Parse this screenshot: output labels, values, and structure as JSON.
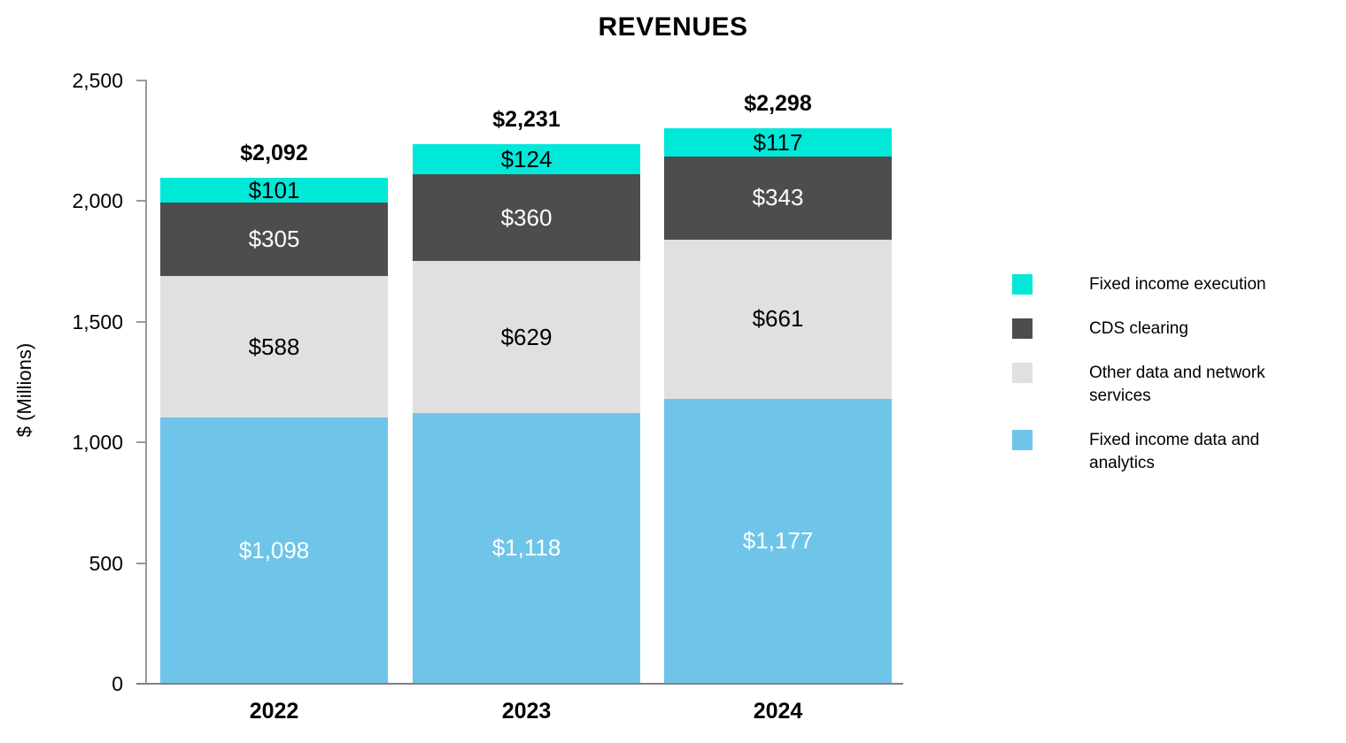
{
  "title": "REVENUES",
  "y_axis": {
    "label": "$ (Millions)",
    "ticks": [
      "0",
      "500",
      "1,000",
      "1,500",
      "2,000",
      "2,500"
    ]
  },
  "x_axis": {
    "categories": [
      "2022",
      "2023",
      "2024"
    ]
  },
  "chart_data": {
    "type": "bar",
    "stacked": true,
    "title": "REVENUES",
    "xlabel": "",
    "ylabel": "$ (Millions)",
    "ylim": [
      0,
      2500
    ],
    "grid": false,
    "legend_position": "right",
    "categories": [
      "2022",
      "2023",
      "2024"
    ],
    "series": [
      {
        "name": "Fixed income data and analytics",
        "color": "#6EC5E9",
        "text_color": "#FFFFFF",
        "values": [
          1098,
          1118,
          1177
        ],
        "value_labels": [
          "$1,098",
          "$1,118",
          "$1,177"
        ]
      },
      {
        "name": "Other data and network services",
        "color": "#E0E0E0",
        "text_color": "#000000",
        "values": [
          588,
          629,
          661
        ],
        "value_labels": [
          "$588",
          "$629",
          "$661"
        ]
      },
      {
        "name": "CDS clearing",
        "color": "#4D4D4D",
        "text_color": "#FFFFFF",
        "values": [
          305,
          360,
          343
        ],
        "value_labels": [
          "$305",
          "$360",
          "$343"
        ]
      },
      {
        "name": "Fixed income execution",
        "color": "#00E8D8",
        "text_color": "#000000",
        "values": [
          101,
          124,
          117
        ],
        "value_labels": [
          "$101",
          "$124",
          "$117"
        ]
      }
    ],
    "totals": [
      2092,
      2231,
      2298
    ],
    "total_labels": [
      "$2,092",
      "$2,231",
      "$2,298"
    ]
  },
  "legend": {
    "items": [
      {
        "label": "Fixed income execution",
        "color": "#00E8D8"
      },
      {
        "label": "CDS clearing",
        "color": "#4D4D4D"
      },
      {
        "label": "Other data and network services",
        "color": "#E0E0E0"
      },
      {
        "label": "Fixed income data and analytics",
        "color": "#6EC5E9"
      }
    ]
  },
  "colors": {
    "cyan": "#00E8D8",
    "dark_gray": "#4D4D4D",
    "light_gray": "#E0E0E0",
    "blue": "#6EC5E9",
    "axis_gray": "#808080",
    "text": "#000000",
    "background": "#FFFFFF"
  }
}
